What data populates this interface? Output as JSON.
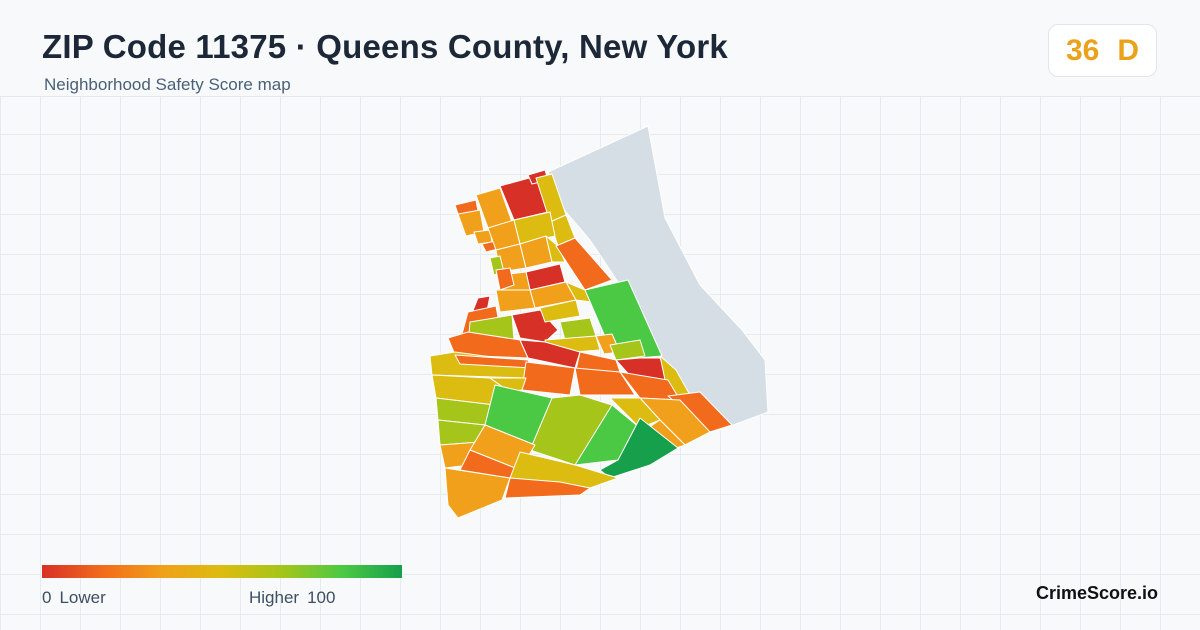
{
  "header": {
    "title": "ZIP Code 11375 · Queens County, New York",
    "subtitle": "Neighborhood Safety Score map"
  },
  "score": {
    "value": "36",
    "grade": "D",
    "color": "#eaa21b"
  },
  "legend": {
    "low_value": "0",
    "low_label": "Lower",
    "high_label": "Higher",
    "high_value": "100",
    "colors": [
      "#d73027",
      "#f26b1c",
      "#f0a01a",
      "#dcbc10",
      "#a5c51a",
      "#4cc944",
      "#17a04c"
    ]
  },
  "brand": {
    "name": "CrimeScore.io"
  },
  "map": {
    "water_color": "#d6dee5",
    "area_colors": [
      "#d73027",
      "#f26b1c",
      "#f0a01a",
      "#dcbc10",
      "#a5c51a",
      "#4cc944",
      "#17a04c"
    ]
  }
}
